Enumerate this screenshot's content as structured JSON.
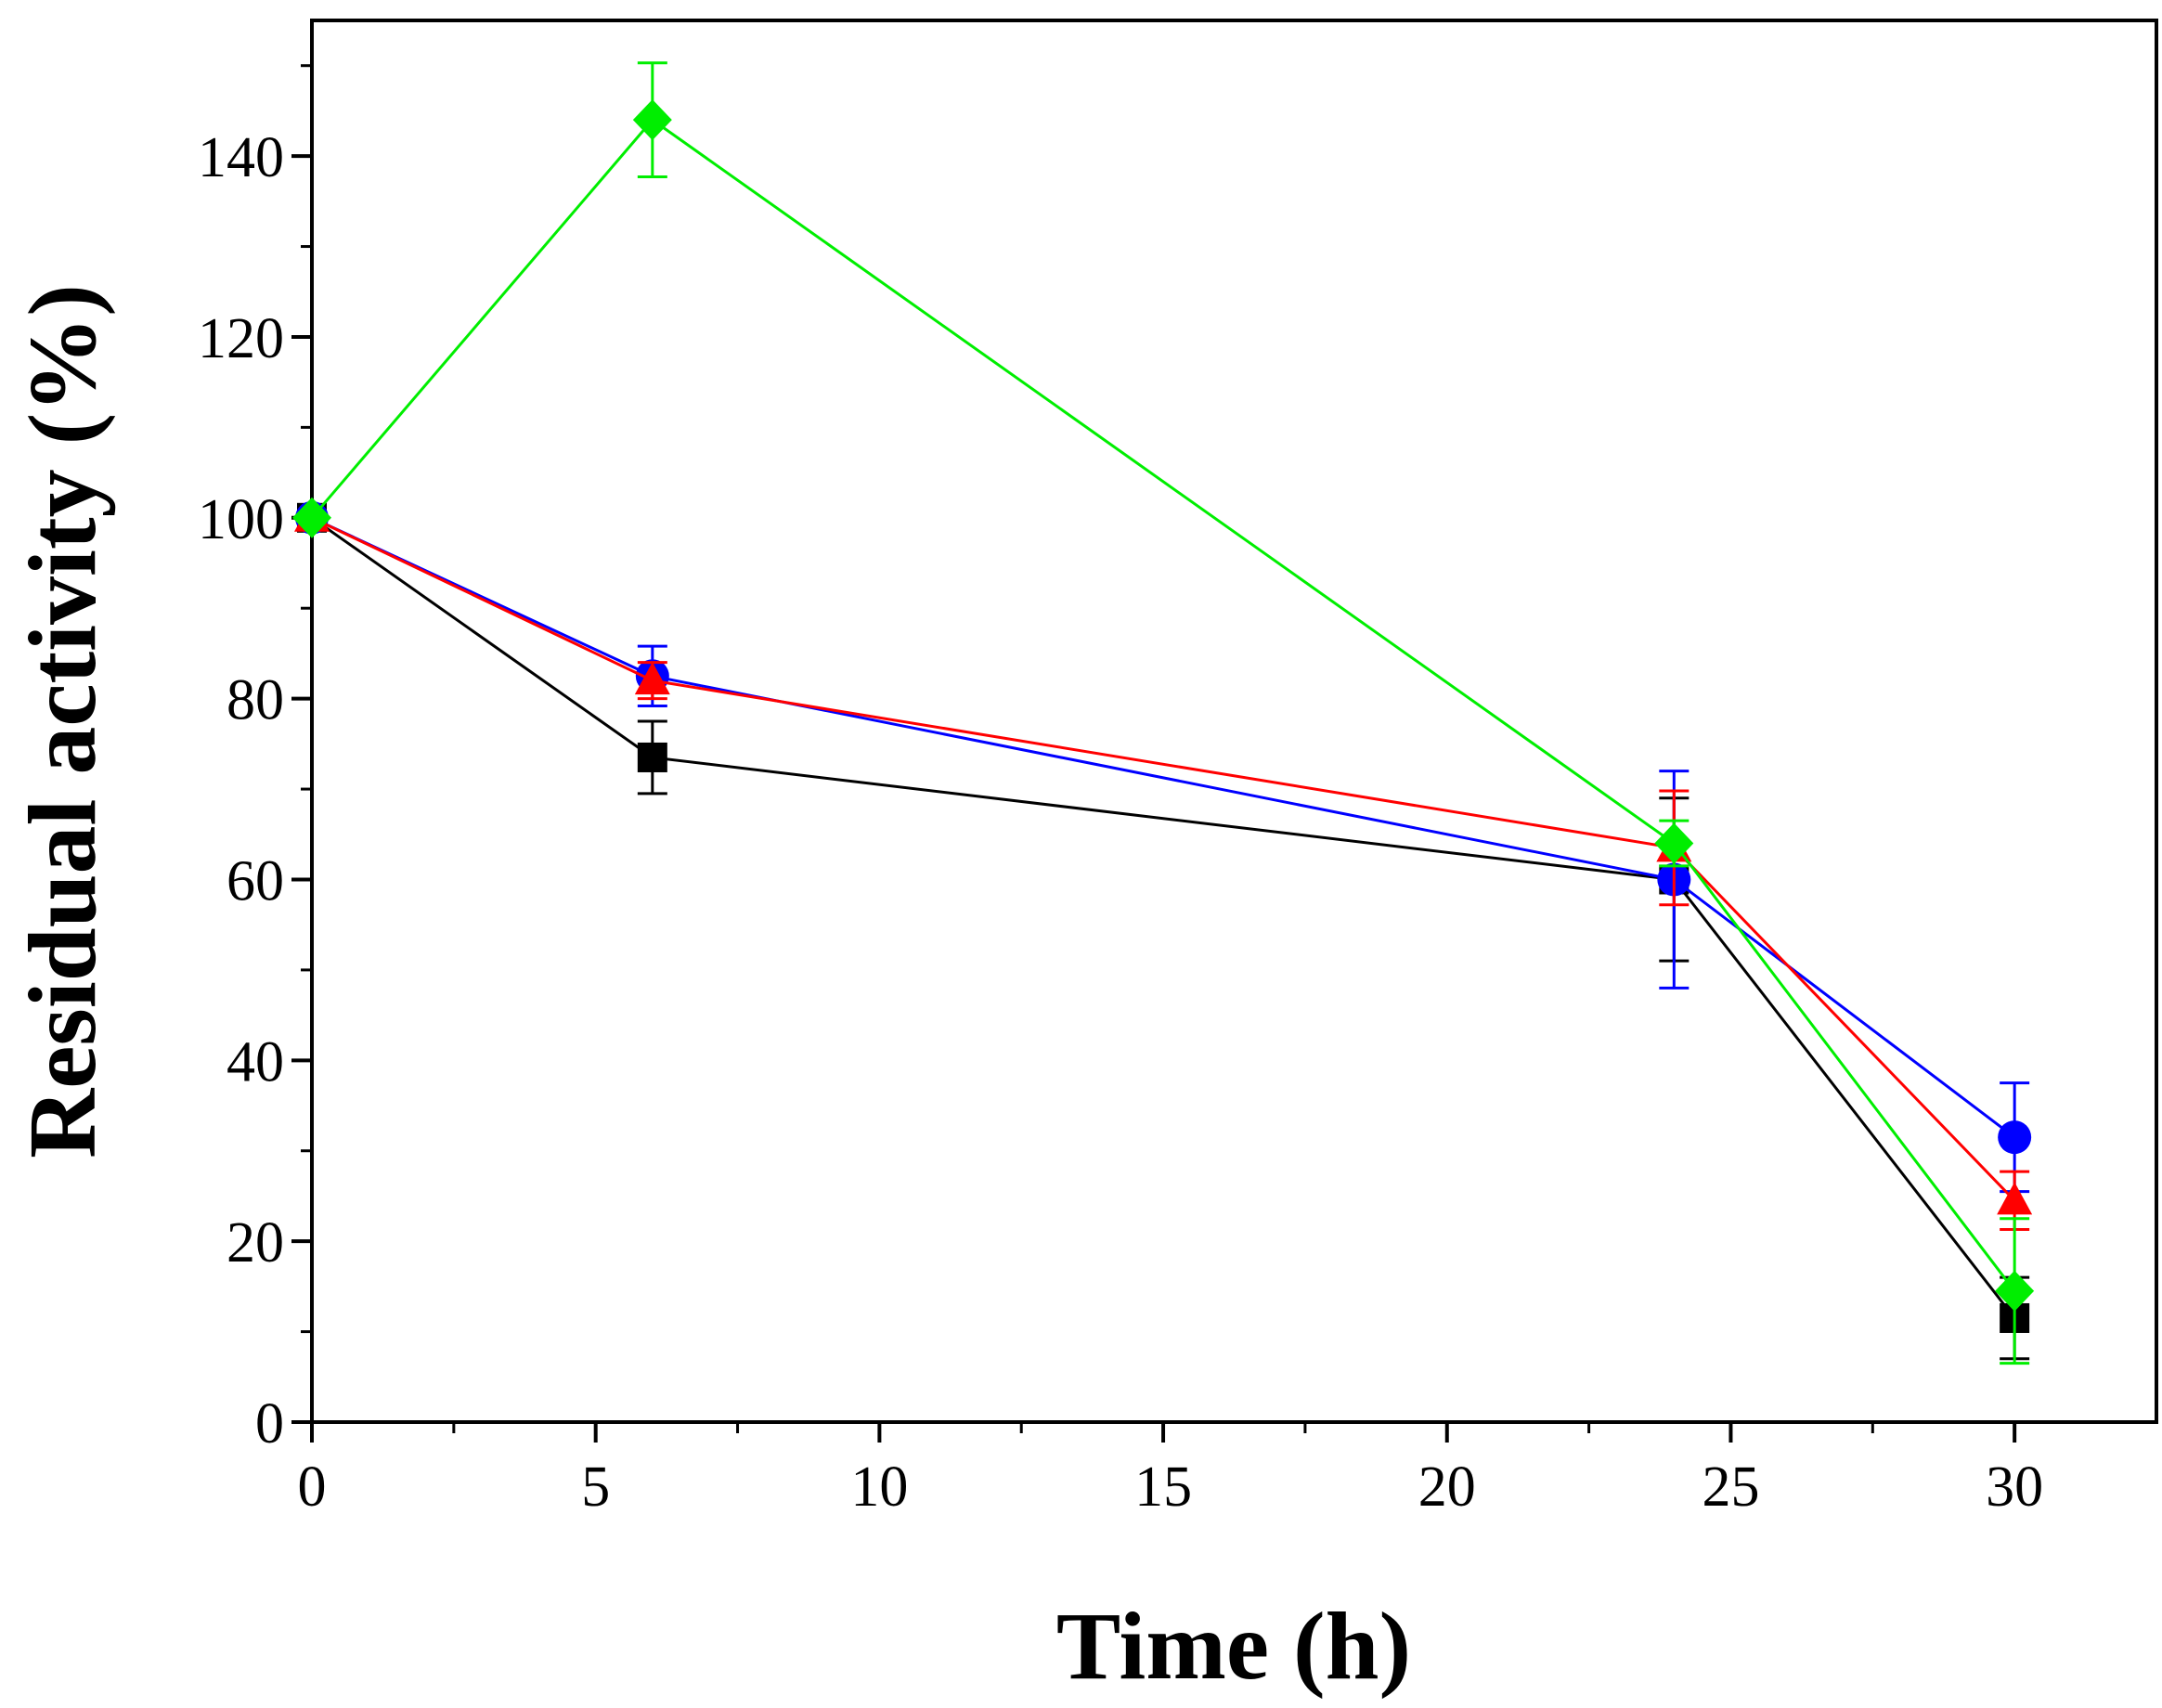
{
  "chart_data": {
    "type": "line",
    "title": "",
    "xlabel": "Time (h)",
    "ylabel": "Residual activity (%)",
    "xlim": [
      0,
      32.5
    ],
    "ylim": [
      0,
      155
    ],
    "xticks": [
      0,
      5,
      10,
      15,
      20,
      25,
      30
    ],
    "xtick_labels": [
      "0",
      "5",
      "10",
      "15",
      "20",
      "25",
      "30"
    ],
    "yticks": [
      0,
      20,
      40,
      60,
      80,
      100,
      120,
      140
    ],
    "ytick_labels": [
      "0",
      "20",
      "40",
      "60",
      "80",
      "100",
      "120",
      "140"
    ],
    "x": [
      0,
      6,
      24,
      30
    ],
    "series": [
      {
        "name": "black-square",
        "color": "#000000",
        "marker": "square",
        "values": [
          100,
          73.5,
          60,
          11.5
        ],
        "errors": [
          0,
          4,
          9,
          4.5
        ]
      },
      {
        "name": "blue-circle",
        "color": "#0000ff",
        "marker": "circle",
        "values": [
          100,
          82.5,
          60,
          31.5
        ],
        "errors": [
          0,
          3.3,
          12,
          6
        ]
      },
      {
        "name": "red-triangle",
        "color": "#ff0000",
        "marker": "triangle",
        "values": [
          100,
          82,
          63.5,
          24.5
        ],
        "errors": [
          0,
          2,
          6.3,
          3.2
        ]
      },
      {
        "name": "green-diamond",
        "color": "#00ee00",
        "marker": "diamond",
        "values": [
          100,
          144,
          64,
          14.5
        ],
        "errors": [
          0,
          6.3,
          2.5,
          8
        ]
      }
    ]
  }
}
